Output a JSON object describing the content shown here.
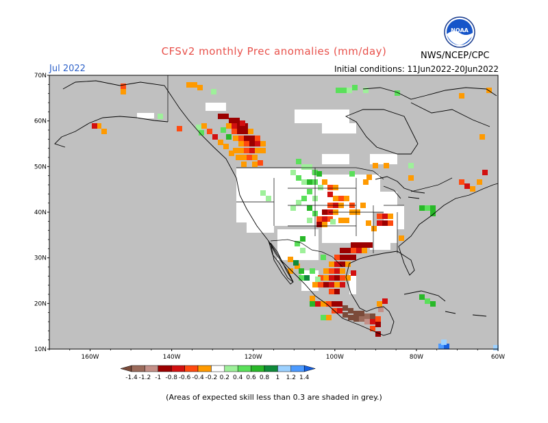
{
  "title": "CFSv2 monthly Prec anomalies (mm/day)",
  "month": "Jul 2022",
  "initial_conditions": "Initial conditions: 11Jun2022-20Jun2022",
  "agency": "NWS/NCEP/CPC",
  "logo_text": "NOAA",
  "footnote": "(Areas of expected skill less than 0.3 are shaded in grey.)",
  "map": {
    "lat_labels": [
      "70N",
      "60N",
      "50N",
      "40N",
      "30N",
      "20N",
      "10N"
    ],
    "lon_labels": [
      "160W",
      "140W",
      "120W",
      "100W",
      "80W",
      "60W"
    ],
    "grey_color": "#c0c0c0"
  },
  "legend": {
    "labels": [
      "-1.4",
      "-1.2",
      "-1",
      "-0.8",
      "-0.6",
      "-0.4",
      "-0.2",
      "0.2",
      "0.4",
      "0.6",
      "0.8",
      "1",
      "1.2",
      "1.4"
    ],
    "colors": [
      "#7b4b3a",
      "#9b6b5b",
      "#c49088",
      "#9b0000",
      "#d21010",
      "#ff4a10",
      "#ff9a00",
      "#ffffff",
      "#9ef09a",
      "#5ae05a",
      "#28b828",
      "#0f8a3a",
      "#9cd1ff",
      "#4c9aff",
      "#1560e0"
    ]
  }
}
